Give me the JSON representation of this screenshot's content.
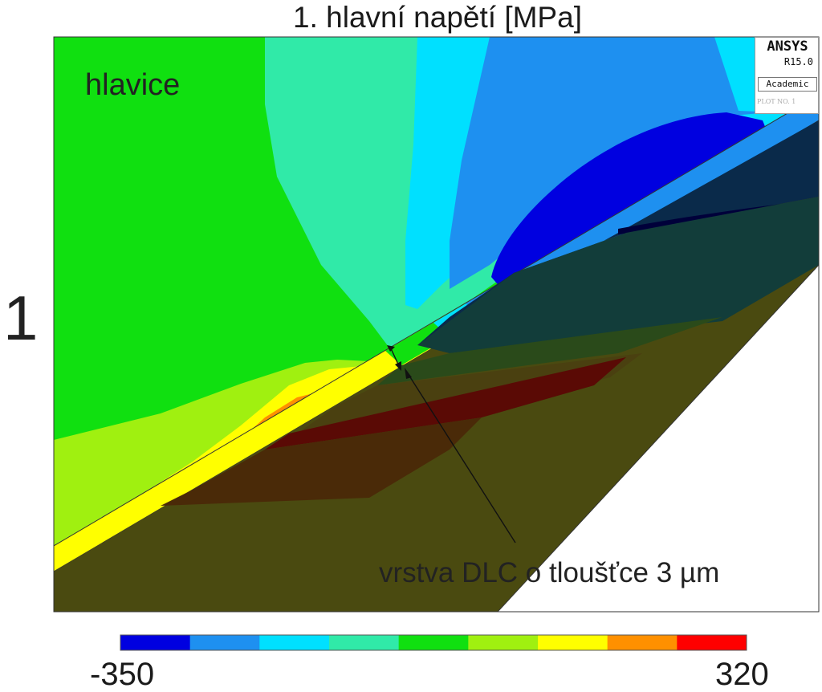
{
  "title": "1. hlavní napětí [MPa]",
  "panel_label": "1",
  "logo": {
    "name": "ANSYS",
    "version": "R15.0",
    "edition": "Academic",
    "plot_no": "PLOT NO.  1"
  },
  "labels": {
    "head": "hlavice",
    "layer": "vrstva DLC o tloušťce 3 µm"
  },
  "colorbar": {
    "min_label": "-350",
    "max_label": "320",
    "colors": [
      "#0000e0",
      "#1e90f0",
      "#00e0ff",
      "#30eaa8",
      "#10e010",
      "#a0f010",
      "#ffff00",
      "#ff9000",
      "#ff0000"
    ]
  }
}
